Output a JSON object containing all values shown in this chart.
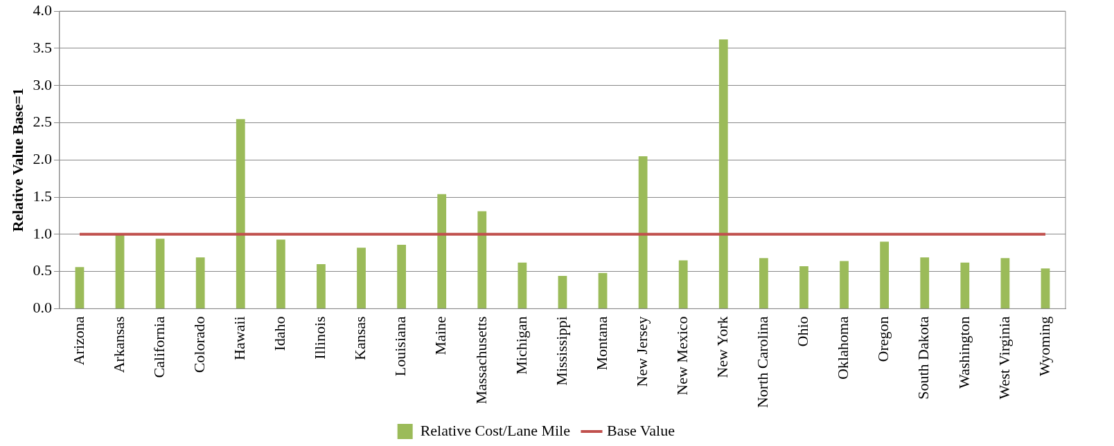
{
  "chart_data": {
    "type": "bar",
    "ylabel": "Relative Value Base=1",
    "categories": [
      "Arizona",
      "Arkansas",
      "California",
      "Colorado",
      "Hawaii",
      "Idaho",
      "Illinois",
      "Kansas",
      "Louisiana",
      "Maine",
      "Massachusetts",
      "Michigan",
      "Mississippi",
      "Montana",
      "New Jersey",
      "New Mexico",
      "New York",
      "North Carolina",
      "Ohio",
      "Oklahoma",
      "Oregon",
      "South Dakota",
      "Washington",
      "West Virginia",
      "Wyoming"
    ],
    "series": [
      {
        "name": "Relative Cost/Lane Mile",
        "color": "#9bbb59",
        "values": [
          0.56,
          1.0,
          0.94,
          0.69,
          2.55,
          0.93,
          0.6,
          0.82,
          0.86,
          1.54,
          1.31,
          0.62,
          0.44,
          0.48,
          2.05,
          0.65,
          3.62,
          0.68,
          0.57,
          0.64,
          0.9,
          0.69,
          0.62,
          0.68,
          0.54
        ]
      },
      {
        "name": "Base Value",
        "type": "line",
        "color": "#c0504d",
        "values": [
          1,
          1,
          1,
          1,
          1,
          1,
          1,
          1,
          1,
          1,
          1,
          1,
          1,
          1,
          1,
          1,
          1,
          1,
          1,
          1,
          1,
          1,
          1,
          1,
          1
        ]
      }
    ],
    "ylim": [
      0,
      4
    ],
    "yticks": [
      {
        "value": 0,
        "label": "0.0"
      },
      {
        "value": 0.5,
        "label": "0.5"
      },
      {
        "value": 1,
        "label": "1.0"
      },
      {
        "value": 1.5,
        "label": "1.5"
      },
      {
        "value": 2,
        "label": "2.0"
      },
      {
        "value": 2.5,
        "label": "2.5"
      },
      {
        "value": 3,
        "label": "3.0"
      },
      {
        "value": 3.5,
        "label": "3.5"
      },
      {
        "value": 4,
        "label": "4.0"
      }
    ],
    "grid": "y",
    "legend": "bottom",
    "marker": "none"
  }
}
